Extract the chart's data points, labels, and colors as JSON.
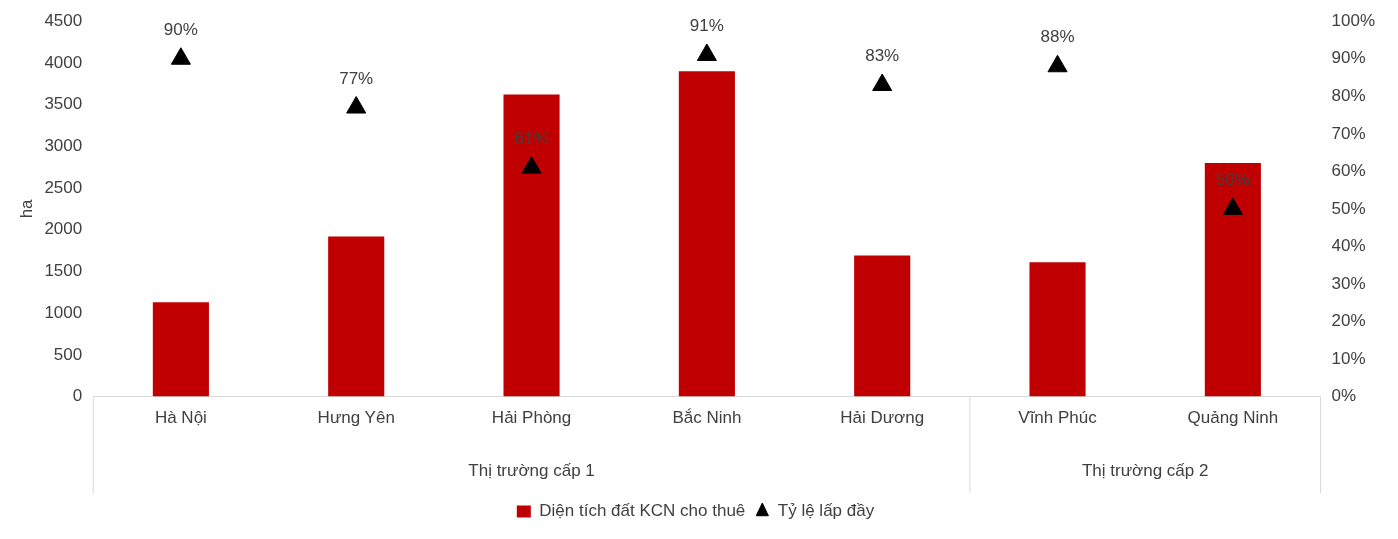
{
  "chart_data": {
    "type": "bar",
    "ylabel": "ha",
    "categories": [
      "Hà Nội",
      "Hưng Yên",
      "Hải Phòng",
      "Bắc Ninh",
      "Hải Dương",
      "Vĩnh Phúc",
      "Quảng Ninh"
    ],
    "series": [
      {
        "name": "Diện tích đất KCN cho thuê",
        "color": "#c00000",
        "values": [
          1130,
          1920,
          3620,
          3900,
          1690,
          1610,
          2800
        ]
      },
      {
        "name": "Tỷ lệ lấp đầy",
        "type": "scatter",
        "axis": "y2",
        "marker": "triangle",
        "color": "#000000",
        "values": [
          90,
          77,
          61,
          91,
          83,
          88,
          50
        ],
        "value_labels": [
          "90%",
          "77%",
          "61%",
          "91%",
          "83%",
          "88%",
          "50%"
        ]
      }
    ],
    "ylim": [
      0,
      4500
    ],
    "yticks": [
      0,
      500,
      1000,
      1500,
      2000,
      2500,
      3000,
      3500,
      4000,
      4500
    ],
    "y2lim": [
      0,
      100
    ],
    "y2ticks": [
      {
        "value": 0,
        "label": "0%"
      },
      {
        "value": 10,
        "label": "10%"
      },
      {
        "value": 20,
        "label": "20%"
      },
      {
        "value": 30,
        "label": "30%"
      },
      {
        "value": 40,
        "label": "40%"
      },
      {
        "value": 50,
        "label": "50%"
      },
      {
        "value": 60,
        "label": "60%"
      },
      {
        "value": 70,
        "label": "70%"
      },
      {
        "value": 80,
        "label": "80%"
      },
      {
        "value": 90,
        "label": "90%"
      },
      {
        "value": 100,
        "label": "100%"
      }
    ],
    "annotations": [
      "Thị trường cấp 1",
      "Thị trường cấp 2"
    ],
    "legend": "bottom"
  }
}
